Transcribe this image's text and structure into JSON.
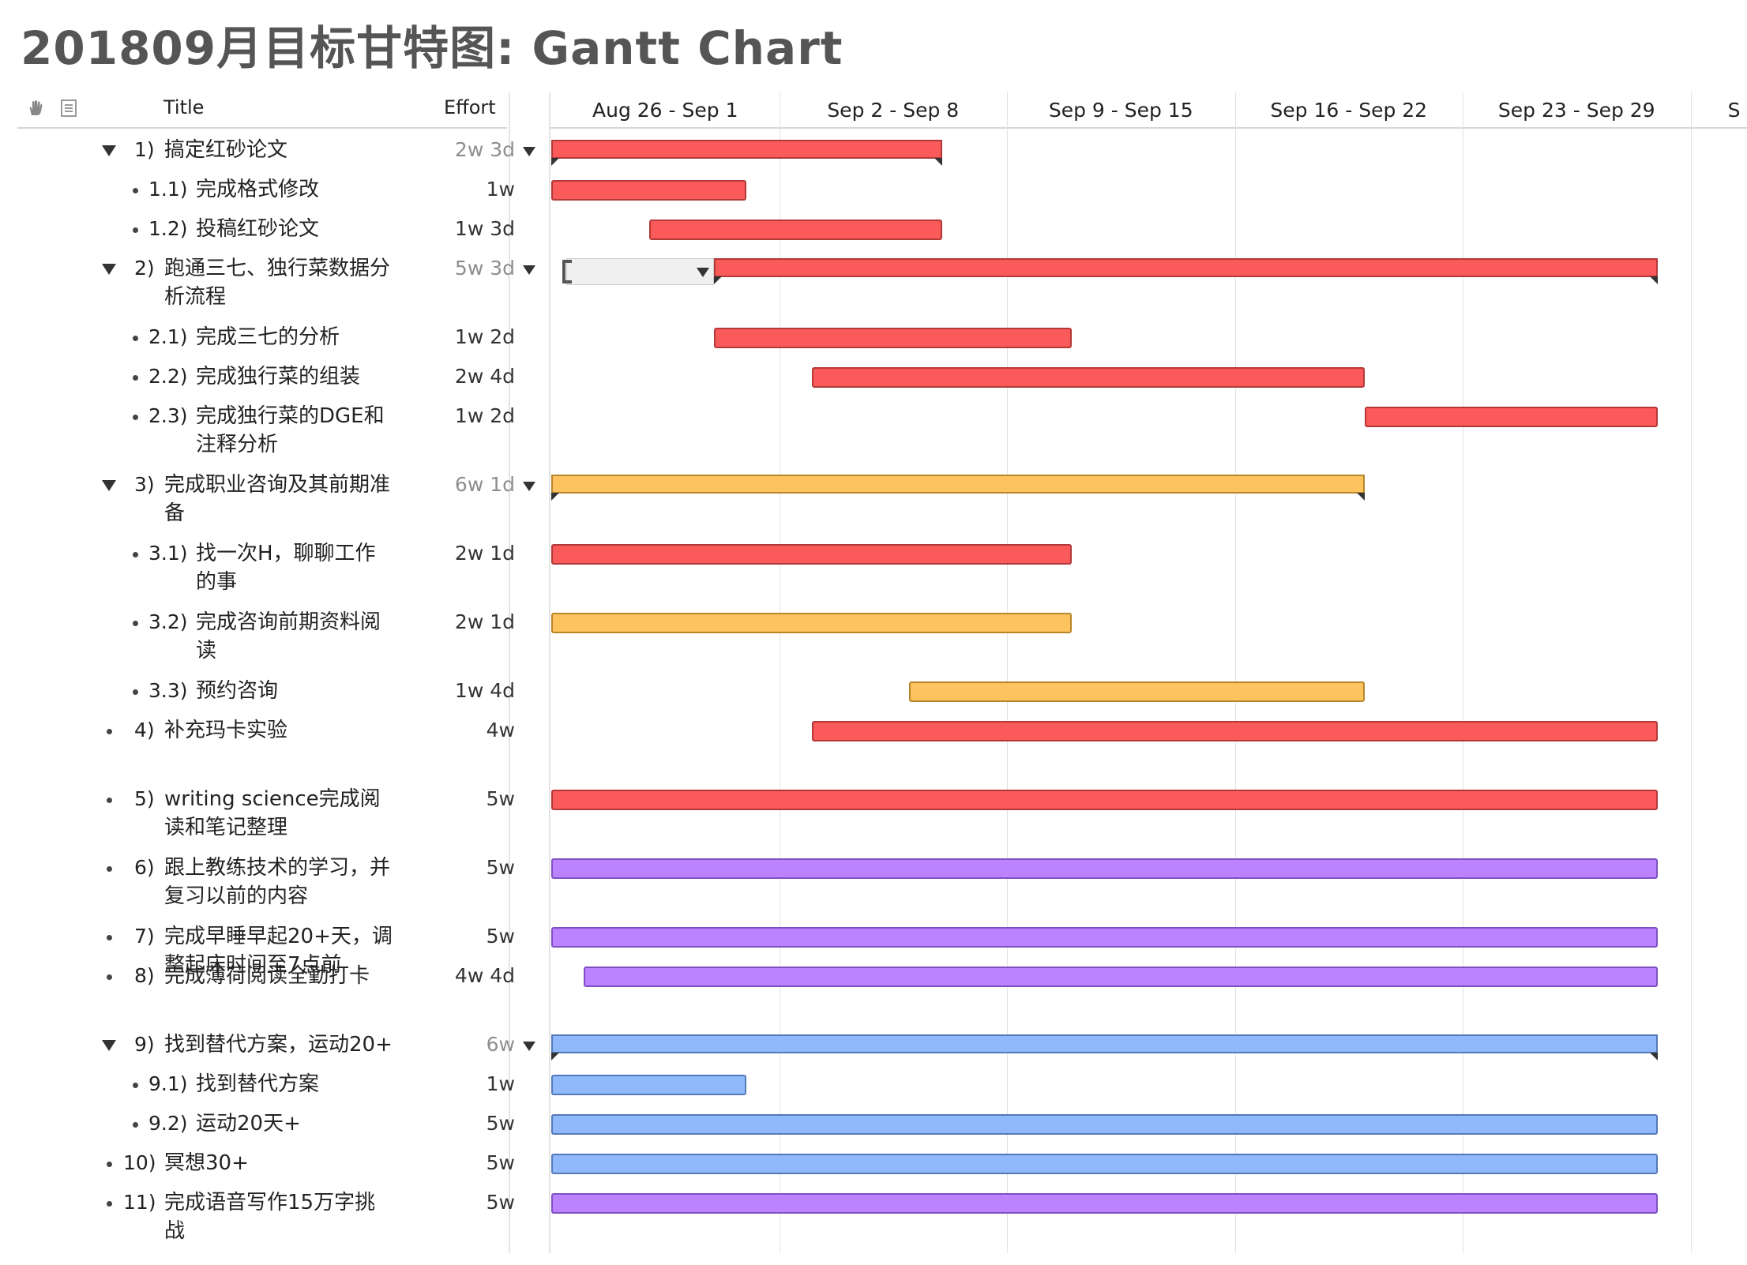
{
  "page_title": "201809月目标甘特图: Gantt Chart",
  "header": {
    "title_label": "Title",
    "effort_label": "Effort",
    "hand_icon": "hand-icon",
    "notes_icon": "notes-icon",
    "weeks": [
      "Aug 26 - Sep 1",
      "Sep 2 - Sep 8",
      "Sep 9 - Sep 15",
      "Sep 16 - Sep 22",
      "Sep 23 - Sep 29",
      "S"
    ]
  },
  "colors": {
    "red": "#fb5a5a",
    "orange": "#fdc35e",
    "purple": "#bb83ff",
    "blue": "#8fb9fb"
  },
  "chart_data": {
    "type": "gantt",
    "start_date": "2018-08-26",
    "tasks": [
      {
        "num": "1)",
        "title": "搞定红砂论文",
        "effort": "2w 3d",
        "level": 0,
        "group": true,
        "expanded": true,
        "color": "red",
        "start": "2018-08-26",
        "end": "2018-09-06"
      },
      {
        "num": "1.1)",
        "title": "完成格式修改",
        "effort": "1w",
        "level": 1,
        "color": "red",
        "start": "2018-08-26",
        "end": "2018-08-31"
      },
      {
        "num": "1.2)",
        "title": "投稿红砂论文",
        "effort": "1w 3d",
        "level": 1,
        "color": "red",
        "start": "2018-08-29",
        "end": "2018-09-06"
      },
      {
        "num": "2)",
        "title": "跑通三七、独行菜数据分析流程",
        "effort": "5w 3d",
        "level": 0,
        "group": true,
        "expanded": true,
        "color": "red",
        "start": "2018-08-31",
        "end": "2018-09-28"
      },
      {
        "num": "2.1)",
        "title": "完成三七的分析",
        "effort": "1w 2d",
        "level": 1,
        "color": "red",
        "start": "2018-08-31",
        "end": "2018-09-10"
      },
      {
        "num": "2.2)",
        "title": "完成独行菜的组装",
        "effort": "2w 4d",
        "level": 1,
        "color": "red",
        "start": "2018-09-03",
        "end": "2018-09-19"
      },
      {
        "num": "2.3)",
        "title": "完成独行菜的DGE和注释分析",
        "effort": "1w 2d",
        "level": 1,
        "color": "red",
        "start": "2018-09-20",
        "end": "2018-09-28"
      },
      {
        "num": "3)",
        "title": "完成职业咨询及其前期准备",
        "effort": "6w 1d",
        "level": 0,
        "group": true,
        "expanded": true,
        "color": "orange",
        "start": "2018-08-26",
        "end": "2018-09-19"
      },
      {
        "num": "3.1)",
        "title": "找一次H，聊聊工作的事",
        "effort": "2w 1d",
        "level": 1,
        "color": "red",
        "start": "2018-08-26",
        "end": "2018-09-10"
      },
      {
        "num": "3.2)",
        "title": "完成咨询前期资料阅读",
        "effort": "2w 1d",
        "level": 1,
        "color": "orange",
        "start": "2018-08-26",
        "end": "2018-09-10"
      },
      {
        "num": "3.3)",
        "title": "预约咨询",
        "effort": "1w 4d",
        "level": 1,
        "color": "orange",
        "start": "2018-09-06",
        "end": "2018-09-19"
      },
      {
        "num": "4)",
        "title": "补充玛卡实验",
        "effort": "4w",
        "level": 0,
        "color": "red",
        "start": "2018-09-03",
        "end": "2018-09-28"
      },
      {
        "num": "5)",
        "title": "writing science完成阅读和笔记整理",
        "effort": "5w",
        "level": 0,
        "color": "red",
        "start": "2018-08-26",
        "end": "2018-09-28"
      },
      {
        "num": "6)",
        "title": "跟上教练技术的学习，并复习以前的内容",
        "effort": "5w",
        "level": 0,
        "color": "purple",
        "start": "2018-08-26",
        "end": "2018-09-28"
      },
      {
        "num": "7)",
        "title": "完成早睡早起20+天，调整起床时间至7点前",
        "effort": "5w",
        "level": 0,
        "color": "purple",
        "start": "2018-08-26",
        "end": "2018-09-28"
      },
      {
        "num": "8)",
        "title": "完成薄荷阅读全勤打卡",
        "effort": "4w 4d",
        "level": 0,
        "color": "purple",
        "start": "2018-08-27",
        "end": "2018-09-28"
      },
      {
        "num": "9)",
        "title": "找到替代方案，运动20+",
        "effort": "6w",
        "level": 0,
        "group": true,
        "expanded": true,
        "color": "blue",
        "start": "2018-08-26",
        "end": "2018-09-28"
      },
      {
        "num": "9.1)",
        "title": "找到替代方案",
        "effort": "1w",
        "level": 1,
        "color": "blue",
        "start": "2018-08-26",
        "end": "2018-08-31"
      },
      {
        "num": "9.2)",
        "title": "运动20天+",
        "effort": "5w",
        "level": 1,
        "color": "blue",
        "start": "2018-08-26",
        "end": "2018-09-28"
      },
      {
        "num": "10)",
        "title": "冥想30+",
        "effort": "5w",
        "level": 0,
        "color": "blue",
        "start": "2018-08-26",
        "end": "2018-09-28"
      },
      {
        "num": "11)",
        "title": "完成语音写作15万字挑战",
        "effort": "5w",
        "level": 0,
        "color": "purple",
        "start": "2018-08-26",
        "end": "2018-09-28"
      }
    ]
  }
}
